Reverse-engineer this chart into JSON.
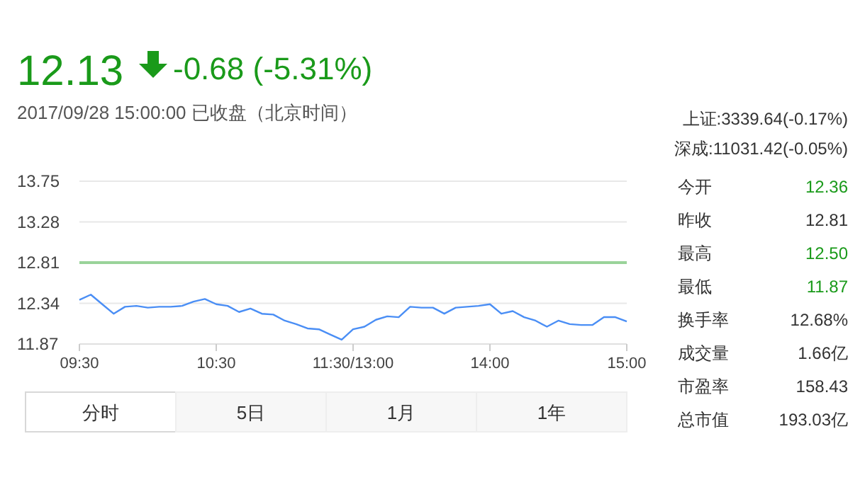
{
  "chart_data": {
    "type": "line",
    "title": "12.13",
    "subtitle": "-0.68 (-5.31%)",
    "annotations": [
      "2017/09/28 15:00:00  已收盘（北京时间）",
      "上证:3339.64(-0.17%)",
      "深成:11031.42(-0.05%)",
      "今开",
      "12.36",
      "昨收",
      "12.81",
      "最高",
      "12.50",
      "最低",
      "11.87",
      "换手率",
      "12.68%",
      "成交量",
      "1.66亿",
      "市盈率",
      "158.43",
      "总市值",
      "193.03亿",
      "分时",
      "5日",
      "1月",
      "1年"
    ],
    "categories": [
      "09:30",
      null,
      null,
      null,
      null,
      null,
      null,
      null,
      null,
      null,
      null,
      null,
      "10:30",
      null,
      null,
      null,
      null,
      null,
      null,
      null,
      null,
      null,
      null,
      null,
      "11:30/13:00",
      null,
      null,
      null,
      null,
      null,
      null,
      null,
      null,
      null,
      null,
      null,
      "14:00",
      null,
      null,
      null,
      null,
      null,
      null,
      null,
      null,
      null,
      null,
      null,
      "15:00"
    ],
    "series": [
      {
        "color": "#4a8ef5",
        "values": [
          12.38,
          12.44,
          12.33,
          12.22,
          12.3,
          12.31,
          12.29,
          12.3,
          12.3,
          12.31,
          12.36,
          12.39,
          12.33,
          12.31,
          12.24,
          12.28,
          12.22,
          12.21,
          12.14,
          12.1,
          12.05,
          12.04,
          11.98,
          11.92,
          12.04,
          12.07,
          12.15,
          12.19,
          12.18,
          12.3,
          12.29,
          12.29,
          12.22,
          12.29,
          12.3,
          12.31,
          12.33,
          12.22,
          12.25,
          12.18,
          12.14,
          12.07,
          12.14,
          12.1,
          12.09,
          12.09,
          12.18,
          12.18,
          12.13
        ]
      }
    ],
    "ylim": [
      11.87,
      13.75
    ],
    "yticks": [
      11.87,
      12.34,
      12.81,
      13.28,
      13.75
    ],
    "grid": "y",
    "ref_lines": [
      {
        "axis": "y",
        "value": 12.81,
        "color": "#99d399"
      }
    ]
  }
}
